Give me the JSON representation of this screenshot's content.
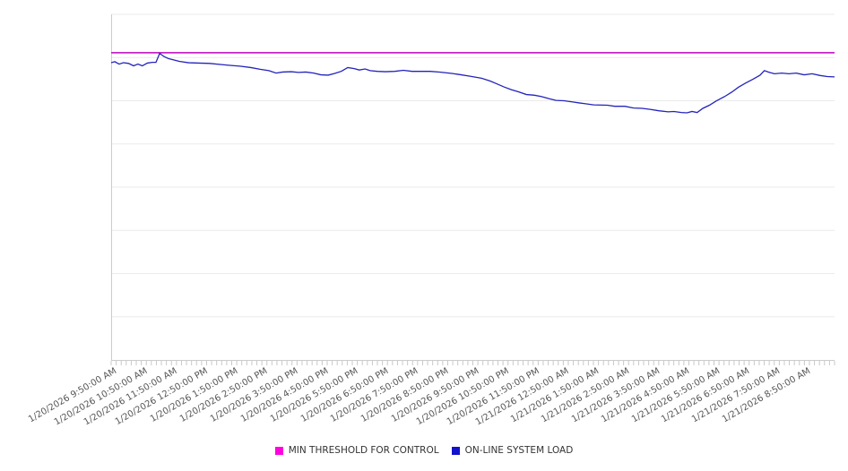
{
  "colors": {
    "threshold_line": "#c724c7",
    "load_line": "#2323bb",
    "legend_threshold_swatch": "#ff00e0",
    "legend_load_swatch": "#1212cc",
    "gridline": "#ebebeb",
    "axis_line": "#cccccc",
    "minor_tick": "#c8c8c8",
    "axis_label_text": "#555555",
    "legend_text": "#333333"
  },
  "legend": {
    "items": [
      {
        "label": "MIN THRESHOLD FOR CONTROL",
        "color": "#ff00e0"
      },
      {
        "label": "ON-LINE SYSTEM LOAD",
        "color": "#1212cc"
      }
    ]
  },
  "chart_data": {
    "type": "line",
    "title": "",
    "xlabel": "",
    "ylabel": "",
    "y_axis": {
      "unlabeled": true,
      "min": 0,
      "max": 100,
      "note": "values estimated as percent of plot height; no y tick labels shown",
      "gridline_values": [
        12.5,
        25,
        37.5,
        50,
        62.5,
        75,
        87.5,
        100
      ]
    },
    "x_axis": {
      "minor_tick_count": 145,
      "minor_tick_interval": "10 minutes",
      "label_interval": "1 hour"
    },
    "x_labels": [
      "1/20/2026 9:50:00 AM",
      "1/20/2026 10:50:00 AM",
      "1/20/2026 11:50:00 AM",
      "1/20/2026 12:50:00 PM",
      "1/20/2026 1:50:00 PM",
      "1/20/2026 2:50:00 PM",
      "1/20/2026 3:50:00 PM",
      "1/20/2026 4:50:00 PM",
      "1/20/2026 5:50:00 PM",
      "1/20/2026 6:50:00 PM",
      "1/20/2026 7:50:00 PM",
      "1/20/2026 8:50:00 PM",
      "1/20/2026 9:50:00 PM",
      "1/20/2026 10:50:00 PM",
      "1/20/2026 11:50:00 PM",
      "1/21/2026 12:50:00 AM",
      "1/21/2026 1:50:00 AM",
      "1/21/2026 2:50:00 AM",
      "1/21/2026 3:50:00 AM",
      "1/21/2026 4:50:00 AM",
      "1/21/2026 5:50:00 AM",
      "1/21/2026 6:50:00 AM",
      "1/21/2026 7:50:00 AM",
      "1/21/2026 8:50:00 AM"
    ],
    "series": [
      {
        "name": "MIN THRESHOLD FOR CONTROL",
        "type": "constant-threshold",
        "color": "#c724c7",
        "value": 88.9
      },
      {
        "name": "ON-LINE SYSTEM LOAD",
        "type": "line",
        "color": "#2323bb",
        "points_format": "[fraction_of_time_axis, value_percent_of_plot_height]",
        "points": [
          [
            0.0,
            86.0
          ],
          [
            0.005,
            86.3
          ],
          [
            0.011,
            85.6
          ],
          [
            0.017,
            86.0
          ],
          [
            0.024,
            85.8
          ],
          [
            0.031,
            85.1
          ],
          [
            0.037,
            85.6
          ],
          [
            0.043,
            85.1
          ],
          [
            0.05,
            85.9
          ],
          [
            0.057,
            86.1
          ],
          [
            0.062,
            86.1
          ],
          [
            0.067,
            88.7
          ],
          [
            0.073,
            87.8
          ],
          [
            0.079,
            87.2
          ],
          [
            0.087,
            86.8
          ],
          [
            0.094,
            86.4
          ],
          [
            0.107,
            86.0
          ],
          [
            0.121,
            85.9
          ],
          [
            0.136,
            85.8
          ],
          [
            0.151,
            85.5
          ],
          [
            0.166,
            85.2
          ],
          [
            0.178,
            85.0
          ],
          [
            0.193,
            84.6
          ],
          [
            0.206,
            84.1
          ],
          [
            0.218,
            83.7
          ],
          [
            0.228,
            83.0
          ],
          [
            0.237,
            83.3
          ],
          [
            0.249,
            83.4
          ],
          [
            0.259,
            83.2
          ],
          [
            0.269,
            83.3
          ],
          [
            0.28,
            83.0
          ],
          [
            0.29,
            82.5
          ],
          [
            0.3,
            82.4
          ],
          [
            0.309,
            82.9
          ],
          [
            0.318,
            83.5
          ],
          [
            0.327,
            84.6
          ],
          [
            0.336,
            84.3
          ],
          [
            0.343,
            83.9
          ],
          [
            0.351,
            84.2
          ],
          [
            0.358,
            83.7
          ],
          [
            0.368,
            83.5
          ],
          [
            0.379,
            83.4
          ],
          [
            0.392,
            83.5
          ],
          [
            0.404,
            83.8
          ],
          [
            0.416,
            83.5
          ],
          [
            0.429,
            83.5
          ],
          [
            0.441,
            83.5
          ],
          [
            0.454,
            83.3
          ],
          [
            0.471,
            82.9
          ],
          [
            0.484,
            82.5
          ],
          [
            0.496,
            82.1
          ],
          [
            0.512,
            81.5
          ],
          [
            0.524,
            80.7
          ],
          [
            0.533,
            79.9
          ],
          [
            0.543,
            79.0
          ],
          [
            0.553,
            78.2
          ],
          [
            0.563,
            77.6
          ],
          [
            0.574,
            76.8
          ],
          [
            0.585,
            76.6
          ],
          [
            0.595,
            76.2
          ],
          [
            0.605,
            75.6
          ],
          [
            0.615,
            75.1
          ],
          [
            0.626,
            75.0
          ],
          [
            0.636,
            74.7
          ],
          [
            0.646,
            74.4
          ],
          [
            0.657,
            74.1
          ],
          [
            0.667,
            73.8
          ],
          [
            0.686,
            73.7
          ],
          [
            0.696,
            73.4
          ],
          [
            0.71,
            73.4
          ],
          [
            0.722,
            72.9
          ],
          [
            0.734,
            72.8
          ],
          [
            0.745,
            72.5
          ],
          [
            0.757,
            72.1
          ],
          [
            0.77,
            71.8
          ],
          [
            0.778,
            71.9
          ],
          [
            0.788,
            71.6
          ],
          [
            0.796,
            71.5
          ],
          [
            0.803,
            71.9
          ],
          [
            0.81,
            71.6
          ],
          [
            0.818,
            72.8
          ],
          [
            0.827,
            73.7
          ],
          [
            0.836,
            74.9
          ],
          [
            0.848,
            76.2
          ],
          [
            0.858,
            77.5
          ],
          [
            0.867,
            78.9
          ],
          [
            0.877,
            80.1
          ],
          [
            0.887,
            81.2
          ],
          [
            0.897,
            82.4
          ],
          [
            0.903,
            83.7
          ],
          [
            0.91,
            83.2
          ],
          [
            0.917,
            82.8
          ],
          [
            0.927,
            83.0
          ],
          [
            0.937,
            82.8
          ],
          [
            0.947,
            83.0
          ],
          [
            0.958,
            82.5
          ],
          [
            0.969,
            82.8
          ],
          [
            0.98,
            82.3
          ],
          [
            0.99,
            82.0
          ],
          [
            1.0,
            81.9
          ]
        ]
      }
    ],
    "legend_position": "bottom-center",
    "grid": "horizontal-only"
  }
}
